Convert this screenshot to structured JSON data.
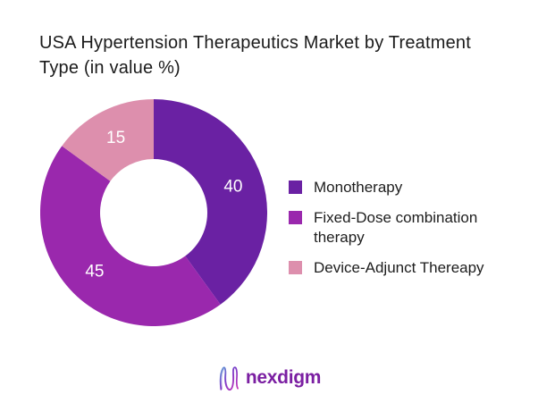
{
  "title": {
    "line1": "USA Hypertension Therapeutics Market by Treatment",
    "line2": "Type (in value %)",
    "full": "USA Hypertension Therapeutics Market by Treatment Type (in value %)"
  },
  "chart_data": {
    "type": "pie",
    "subtype": "donut",
    "title": "USA Hypertension Therapeutics Market by Treatment Type (in value %)",
    "categories": [
      "Monotherapy",
      "Fixed-Dose combination therapy",
      "Device-Adjunct Thereapy"
    ],
    "values": [
      40,
      45,
      15
    ],
    "unit": "value %",
    "colors": [
      "#6A21A3",
      "#9A28AD",
      "#DD8FAD"
    ],
    "slice_label_color": "#ffffff",
    "start_angle_deg": 0,
    "direction": "clockwise",
    "inner_radius_ratio": 0.47,
    "legend_position": "right",
    "grid": "off"
  },
  "footer": {
    "brand": "nexdigm",
    "brand_color": "#7B1FA2",
    "logo_icon": "nexdigm-n-wave-icon",
    "icon_gradient": [
      "#5B9BD5",
      "#7A3BC8",
      "#C930B8"
    ]
  }
}
